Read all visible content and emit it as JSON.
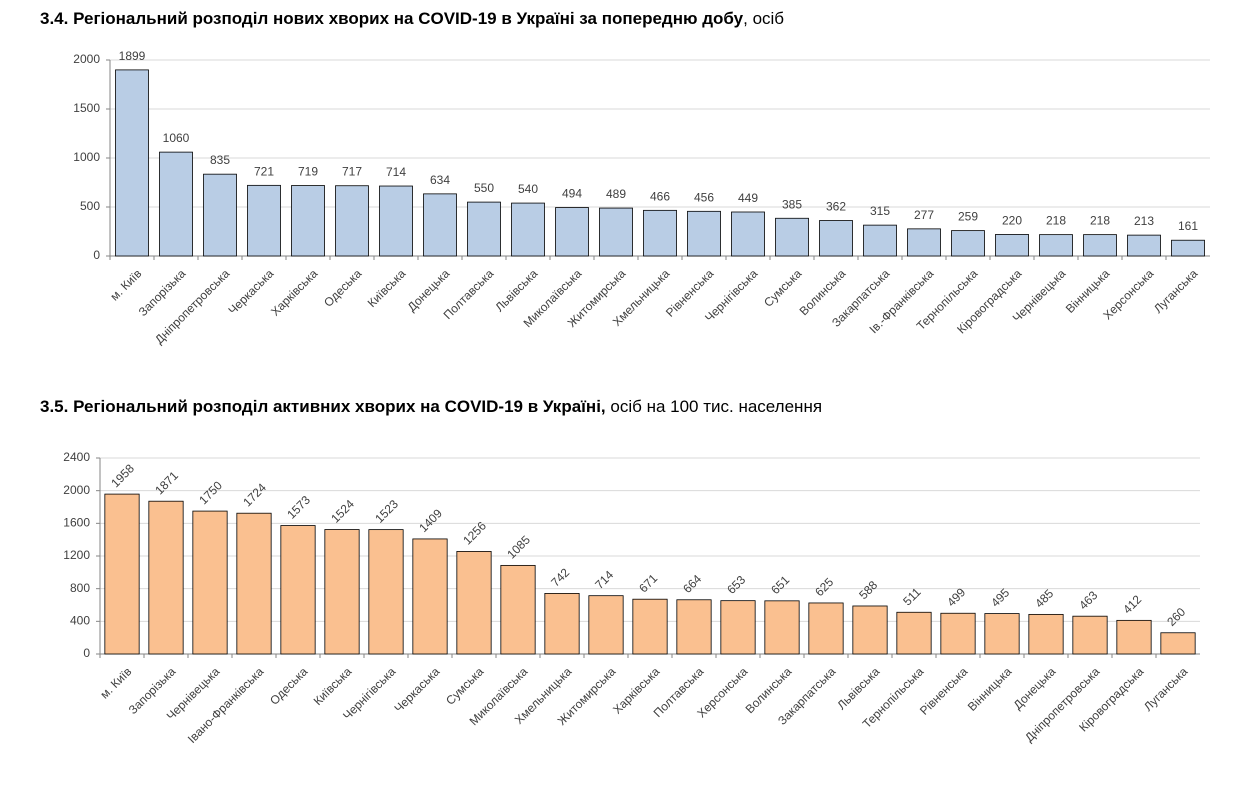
{
  "chart_data": [
    {
      "type": "bar",
      "title": "3.4.  Регіональний розподіл нових хворих на COVID-19 в Україні за попередню добу",
      "title_suffix": ", осіб",
      "categories": [
        "м. Київ",
        "Запорізька",
        "Дніпропетровська",
        "Черкаська",
        "Харківська",
        "Одеська",
        "Київська",
        "Донецька",
        "Полтавська",
        "Львівська",
        "Миколаївська",
        "Житомирська",
        "Хмельницька",
        "Рівненська",
        "Чернігівська",
        "Сумська",
        "Волинська",
        "Закарпатська",
        "Ів.-Франківська",
        "Тернопільська",
        "Кіровоградська",
        "Чернівецька",
        "Вінницька",
        "Херсонська",
        "Луганська"
      ],
      "values": [
        1899,
        1060,
        835,
        721,
        719,
        717,
        714,
        634,
        550,
        540,
        494,
        489,
        466,
        456,
        449,
        385,
        362,
        315,
        277,
        259,
        220,
        218,
        218,
        213,
        161
      ],
      "color": "#b9cde5",
      "ylim": [
        0,
        2000
      ],
      "yticks": [
        0,
        500,
        1000,
        1500,
        2000
      ],
      "grid": true
    },
    {
      "type": "bar",
      "title": "3.5.  Регіональний розподіл активних хворих на COVID-19 в Україні,",
      "title_suffix": " осіб на 100 тис. населення",
      "categories": [
        "м. Київ",
        "Запорізька",
        "Чернівецька",
        "Івано-Франківська",
        "Одеська",
        "Київська",
        "Чернігівська",
        "Черкаська",
        "Сумська",
        "Миколаївська",
        "Хмельницька",
        "Житомирська",
        "Харківська",
        "Полтавська",
        "Херсонська",
        "Волинська",
        "Закарпатська",
        "Львівська",
        "Тернопільська",
        "Рівненська",
        "Вінницька",
        "Донецька",
        "Дніпропетровська",
        "Кіровоградська",
        "Луганська"
      ],
      "values": [
        1958,
        1871,
        1750,
        1724,
        1573,
        1524,
        1523,
        1409,
        1256,
        1085,
        742,
        714,
        671,
        664,
        653,
        651,
        625,
        588,
        511,
        499,
        495,
        485,
        463,
        412,
        260
      ],
      "color": "#fac090",
      "ylim": [
        0,
        2400
      ],
      "yticks": [
        0,
        400,
        800,
        1200,
        1600,
        2000,
        2400
      ],
      "grid": true
    }
  ]
}
